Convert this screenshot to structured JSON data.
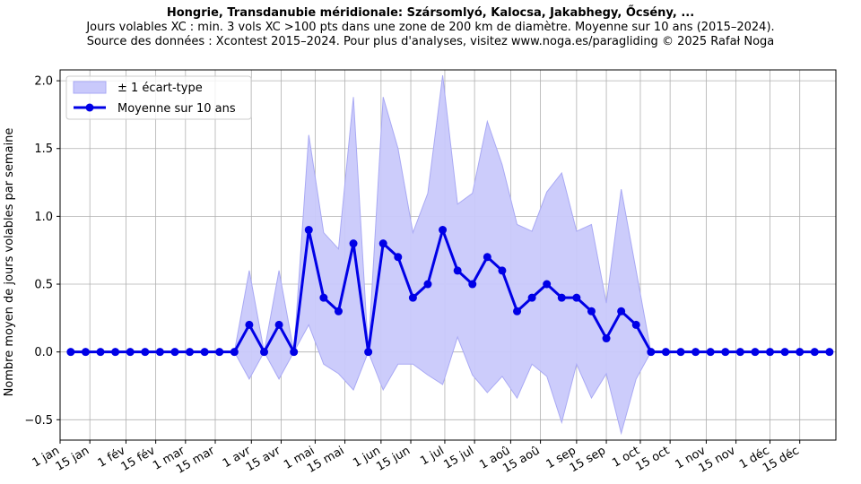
{
  "chart_data": {
    "type": "line",
    "title": "Hongrie, Transdanubie méridionale: Szársomlyó, Kalocsa, Jakabhegy, Őcsény, ...",
    "subtitle_1": "Jours volables XC : min. 3 vols XC >100 pts dans une zone de 200 km de diamètre. Moyenne sur 10 ans (2015–2024).",
    "subtitle_2": "Source des données : Xcontest 2015–2024. Pour plus d'analyses, visitez www.noga.es/paragliding © 2025 Rafał Noga",
    "xlabel": "",
    "ylabel": "Nombre moyen de jours volables par semaine",
    "xlim": [
      0,
      365
    ],
    "ylim": [
      -0.65,
      2.08
    ],
    "y_ticks": [
      -0.5,
      0.0,
      0.5,
      1.0,
      1.5,
      2.0
    ],
    "y_tick_labels": [
      "−0.5",
      "0.0",
      "0.5",
      "1.0",
      "1.5",
      "2.0"
    ],
    "x_ticks": [
      0,
      14,
      31,
      45,
      59,
      73,
      90,
      104,
      120,
      134,
      151,
      165,
      181,
      195,
      212,
      226,
      243,
      257,
      273,
      287,
      304,
      318,
      334,
      348
    ],
    "x_tick_labels": [
      "1 jan",
      "15 jan",
      "1 fév",
      "15 fév",
      "1 mar",
      "15 mar",
      "1 avr",
      "15 avr",
      "1 mai",
      "15 mai",
      "1 jun",
      "15 jun",
      "1 jul",
      "15 jul",
      "1 aoû",
      "15 aoû",
      "1 sep",
      "15 sep",
      "1 oct",
      "15 oct",
      "1 nov",
      "15 nov",
      "1 déc",
      "15 déc"
    ],
    "grid": true,
    "legend_position": "top-left",
    "colors": {
      "mean_line": "#0000e6",
      "band_fill": "#c9c9fb",
      "band_edge": "#a9a9f4",
      "grid": "#b0b0b0"
    },
    "series": [
      {
        "name": "Moyenne sur 10 ans",
        "x": [
          5,
          12,
          19,
          26,
          33,
          40,
          47,
          54,
          61,
          68,
          75,
          82,
          89,
          96,
          103,
          110,
          117,
          124,
          131,
          138,
          145,
          152,
          159,
          166,
          173,
          180,
          187,
          194,
          201,
          208,
          215,
          222,
          229,
          236,
          243,
          250,
          257,
          264,
          271,
          278,
          285,
          292,
          299,
          306,
          313,
          320,
          327,
          334,
          341,
          348,
          355,
          362
        ],
        "y": [
          0,
          0,
          0,
          0,
          0,
          0,
          0,
          0,
          0,
          0,
          0,
          0,
          0.2,
          0,
          0.2,
          0,
          0.9,
          0.4,
          0.3,
          0.8,
          0,
          0.8,
          0.7,
          0.4,
          0.5,
          0.9,
          0.6,
          0.5,
          0.7,
          0.6,
          0.3,
          0.4,
          0.5,
          0.4,
          0.4,
          0.3,
          0.1,
          0.3,
          0.2,
          0,
          0,
          0,
          0,
          0,
          0,
          0,
          0,
          0,
          0,
          0,
          0,
          0
        ]
      },
      {
        "name": "± 1 écart-type",
        "x": [
          5,
          12,
          19,
          26,
          33,
          40,
          47,
          54,
          61,
          68,
          75,
          82,
          89,
          96,
          103,
          110,
          117,
          124,
          131,
          138,
          145,
          152,
          159,
          166,
          173,
          180,
          187,
          194,
          201,
          208,
          215,
          222,
          229,
          236,
          243,
          250,
          257,
          264,
          271,
          278,
          285,
          292,
          299,
          306,
          313,
          320,
          327,
          334,
          341,
          348,
          355,
          362
        ],
        "upper": [
          0,
          0,
          0,
          0,
          0,
          0,
          0,
          0,
          0,
          0,
          0,
          0,
          0.6,
          0,
          0.6,
          0,
          1.6,
          0.88,
          0.76,
          1.88,
          0,
          1.88,
          1.5,
          0.88,
          1.17,
          2.04,
          1.09,
          1.17,
          1.7,
          1.38,
          0.94,
          0.89,
          1.18,
          1.32,
          0.89,
          0.94,
          0.36,
          1.2,
          0.6,
          0,
          0,
          0,
          0,
          0,
          0,
          0,
          0,
          0,
          0,
          0,
          0,
          0
        ],
        "lower": [
          0,
          0,
          0,
          0,
          0,
          0,
          0,
          0,
          0,
          0,
          0,
          0,
          -0.2,
          0,
          -0.2,
          0,
          0.2,
          -0.09,
          -0.16,
          -0.28,
          0,
          -0.28,
          -0.09,
          -0.09,
          -0.17,
          -0.24,
          0.11,
          -0.17,
          -0.3,
          -0.18,
          -0.34,
          -0.09,
          -0.18,
          -0.52,
          -0.09,
          -0.34,
          -0.16,
          -0.6,
          -0.2,
          0,
          0,
          0,
          0,
          0,
          0,
          0,
          0,
          0,
          0,
          0,
          0,
          0
        ]
      }
    ],
    "legend": {
      "band_label": "± 1 écart-type",
      "line_label": "Moyenne sur 10 ans"
    }
  }
}
